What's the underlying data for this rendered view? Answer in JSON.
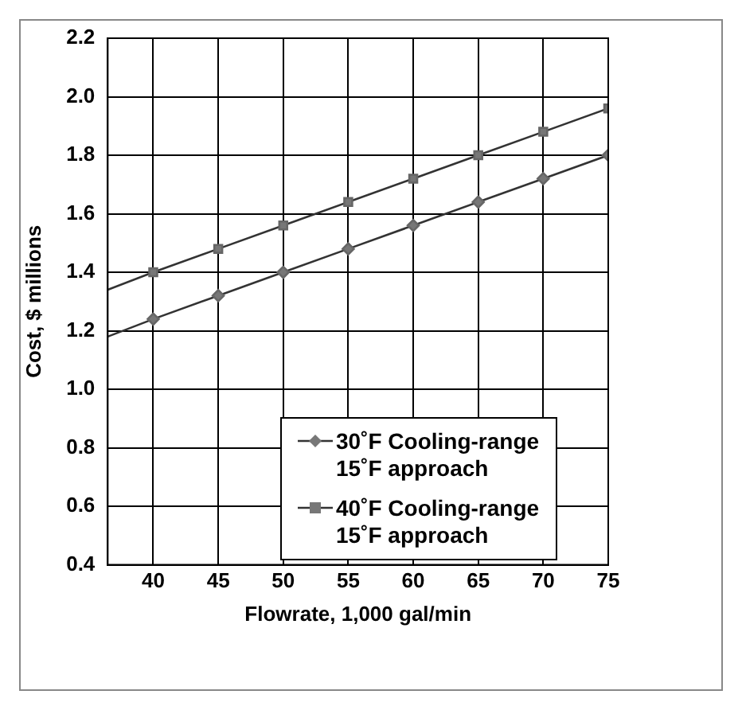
{
  "chart_data": {
    "type": "line",
    "xlabel": "Flowrate, 1,000 gal/min",
    "ylabel": "Cost, $ millions",
    "xlim": [
      36.5,
      75
    ],
    "xticks": [
      40,
      45,
      50,
      55,
      60,
      65,
      70,
      75
    ],
    "ylim": [
      0.4,
      2.2
    ],
    "yticks": [
      0.4,
      0.6,
      0.8,
      {
        "value": 1,
        "label": "1.0"
      },
      1.2,
      1.4,
      1.6,
      1.8,
      {
        "value": 2,
        "label": "2.0"
      },
      2.2
    ],
    "grid": true,
    "legend": "bottom right",
    "series": [
      {
        "name": "30˚F  Cooling-range\n15˚F approach",
        "color": "#333333",
        "marker": "diamond",
        "x": [
          36.5,
          40,
          45,
          50,
          55,
          60,
          65,
          70,
          75
        ],
        "values": [
          1.18,
          1.24,
          1.32,
          1.4,
          1.48,
          1.56,
          1.64,
          1.72,
          1.8
        ]
      },
      {
        "name": "40˚F  Cooling-range\n15˚F approach",
        "color": "#333333",
        "marker": "square",
        "x": [
          36.5,
          40,
          45,
          50,
          55,
          60,
          65,
          70,
          75
        ],
        "values": [
          1.34,
          1.4,
          1.48,
          1.56,
          1.64,
          1.72,
          1.8,
          1.88,
          1.96
        ]
      }
    ]
  }
}
